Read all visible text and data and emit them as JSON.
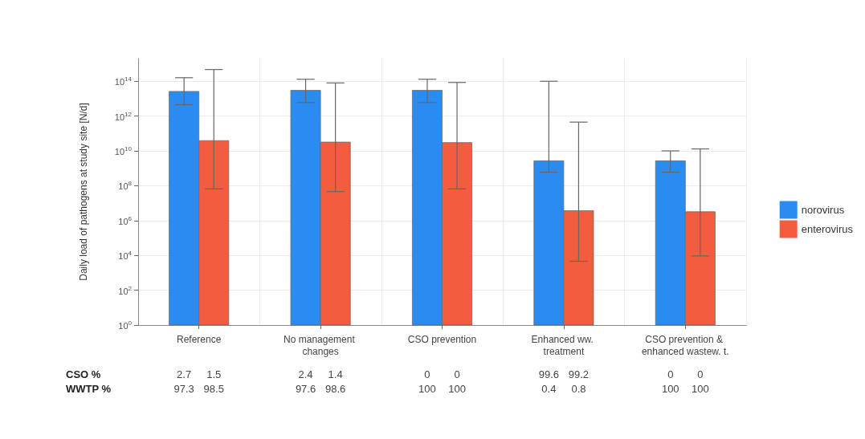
{
  "chart_data": {
    "type": "bar",
    "ylabel": "Daily load of pathogens at study site [N/d]",
    "categories": [
      "Reference",
      "No management changes",
      "CSO prevention",
      "Enhanced ww. treatment",
      "CSO prevention & enhanced wastew. t."
    ],
    "series": [
      {
        "name": "norovirus",
        "color": "#2a8cf0",
        "values": [
          26000000000000.0,
          30000000000000.0,
          30000000000000.0,
          2700000000.0,
          2700000000.0
        ],
        "errors": [
          [
            4500000000000.0,
            160000000000000.0
          ],
          [
            6000000000000.0,
            130000000000000.0
          ],
          [
            6000000000000.0,
            130000000000000.0
          ],
          [
            600000000.0,
            100000000000000.0
          ],
          [
            600000000.0,
            10000000000.0
          ]
        ]
      },
      {
        "name": "enterovirus",
        "color": "#f25c3f",
        "values": [
          39000000000.0,
          32000000000.0,
          30000000000.0,
          3700000.0,
          3200000.0
        ],
        "errors": [
          [
            66000000.0,
            470000000000000.0
          ],
          [
            46000000.0,
            80000000000000.0
          ],
          [
            66000000.0,
            85000000000000.0
          ],
          [
            4600.0,
            450000000000.0
          ],
          [
            9300.0,
            13000000000.0
          ]
        ]
      }
    ],
    "log": "y",
    "ylim": [
      1,
      2000000000000000.0
    ],
    "yticks": [
      {
        "value": 1,
        "label": "10$^{0}$"
      },
      {
        "value": 100,
        "label": "10$^{2}$"
      },
      {
        "value": 10000,
        "label": "10$^{4}$"
      },
      {
        "value": 1000000,
        "label": "10$^{6}$"
      },
      {
        "value": 100000000,
        "label": "10$^{8}$"
      },
      {
        "value": 10000000000,
        "label": "10$^{10}$"
      },
      {
        "value": 1000000000000,
        "label": "10$^{12}$"
      },
      {
        "value": 100000000000000,
        "label": "10$^{14}$"
      }
    ],
    "grid": true,
    "legend": "right",
    "annotations": [
      "CSO %",
      "2.7",
      "1.5",
      "2.4",
      "1.4",
      "0",
      "0",
      "99.6",
      "99.2",
      "0",
      "0",
      "WWTP %",
      "97.3",
      "98.5",
      "97.6",
      "98.6",
      "100",
      "100",
      "0.4",
      "0.8",
      "100",
      "100"
    ]
  }
}
